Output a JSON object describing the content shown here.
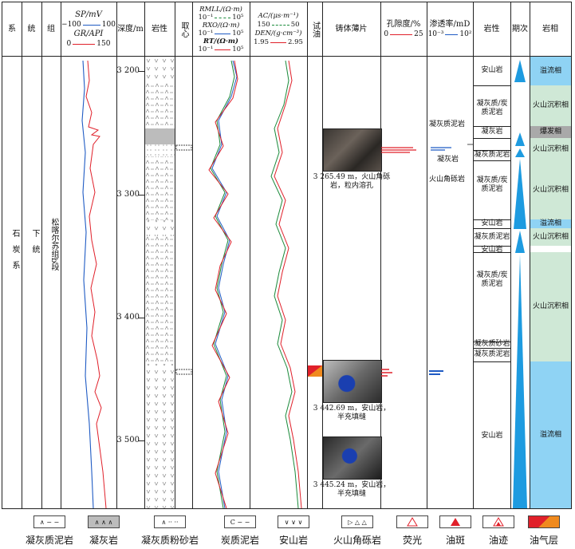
{
  "headers": {
    "system": "系",
    "series": "统",
    "formation": "组",
    "sp_label": "SP/mV",
    "sp_scale_min": "−100",
    "sp_scale_max": "100",
    "gr_label": "GR/API",
    "gr_scale_min": "0",
    "gr_scale_max": "150",
    "depth": "深度/m",
    "lithology": "岩性",
    "core": "取心",
    "rmll_label": "RMLL/(Ω·m)",
    "rmll_min": "10⁻¹",
    "rmll_max": "10⁵",
    "rxo_label": "RXO/(Ω·m)",
    "rxo_min": "10⁻¹",
    "rxo_max": "10⁵",
    "rt_label": "RT/(Ω·m)",
    "rt_min": "10⁻¹",
    "rt_max": "10⁵",
    "ac_label": "AC/(μs·m⁻¹)",
    "ac_min": "150",
    "ac_max": "50",
    "den_label": "DEN/(g·cm⁻³)",
    "den_min": "1.95",
    "den_max": "2.95",
    "oil_test": "试油",
    "thin_section": "铸体薄片",
    "porosity_label": "孔隙度/%",
    "porosity_min": "0",
    "porosity_max": "25",
    "perm_label": "渗透率/mD",
    "perm_min": "10⁻³",
    "perm_max": "10²",
    "lithology2": "岩性",
    "stage": "期次",
    "facies": "岩相"
  },
  "stratigraphy": {
    "system": "石炭系",
    "series": "下统",
    "formation": "松喀尔苏组b段"
  },
  "depth_ticks": [
    "3 200",
    "3 300",
    "3 400",
    "3 500"
  ],
  "captions": [
    "3 265.49 m，火山角砾岩，粒内溶孔",
    "3 442.69 m，安山岩，半充填缝",
    "3 445.24 m，安山岩，半充填缝"
  ],
  "callouts": [
    "凝灰质泥岩",
    "凝灰岩",
    "火山角砾岩"
  ],
  "lithology_layers": [
    "安山岩",
    "凝灰质/炭质泥岩",
    "凝灰岩",
    "凝灰质泥岩",
    "凝灰质/炭质泥岩",
    "安山岩",
    "凝灰质泥岩",
    "安山岩",
    "凝灰质/炭质泥岩",
    "凝灰质砂岩",
    "凝灰质泥岩",
    "安山岩"
  ],
  "facies_layers": [
    "溢流相",
    "火山沉积相",
    "爆发相",
    "火山沉积相",
    "火山沉积相",
    "溢流相",
    "火山沉积相",
    "火山沉积相",
    "溢流相"
  ],
  "legend": [
    {
      "label": "凝灰质泥岩",
      "symbol": "∧ − −"
    },
    {
      "label": "凝灰岩",
      "symbol": "∧ ∧ ∧"
    },
    {
      "label": "凝灰质粉砂岩",
      "symbol": "∧ ·· ··"
    },
    {
      "label": "炭质泥岩",
      "symbol": "C − −"
    },
    {
      "label": "安山岩",
      "symbol": "∨ ∨ ∨"
    },
    {
      "label": "火山角砾岩",
      "symbol": "▷ △ △"
    },
    {
      "label": "荧光",
      "symbol": ""
    },
    {
      "label": "油斑",
      "symbol": ""
    },
    {
      "label": "油迹",
      "symbol": ""
    },
    {
      "label": "油气层",
      "symbol": ""
    }
  ],
  "colors": {
    "red": "#e0202a",
    "blue": "#1f5bc4",
    "green": "#1a8a3a",
    "facies_blue": "#8fd3f4",
    "facies_green": "#cfe8d6",
    "stage_blue": "#1e9be0",
    "oil_orange": "#f08a1e"
  }
}
